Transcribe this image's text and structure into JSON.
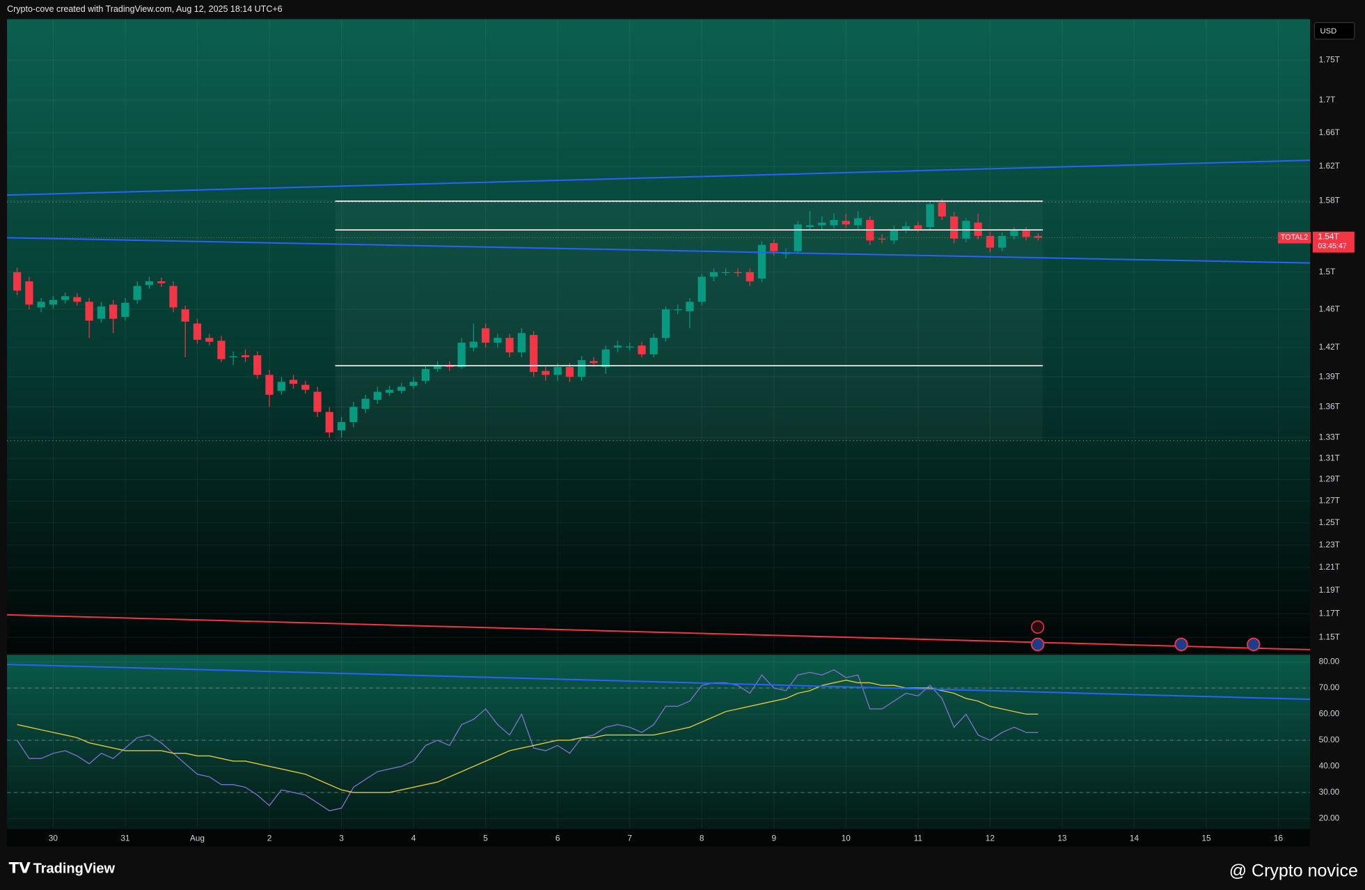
{
  "header": "Crypto-cove created with TradingView.com, Aug 12, 2025 18:14 UTC+6",
  "footer": {
    "brand": "TradingView",
    "watermark": "@ Crypto novice"
  },
  "chart_data": [
    {
      "type": "candlestick",
      "symbol": "TOTAL2",
      "currency": "USD",
      "last_price": {
        "value": 1.538,
        "label": "1.54T"
      },
      "countdown": "03:45:47",
      "up_color": "#089981",
      "down_color": "#f23645",
      "log_scale": true,
      "grid": true,
      "xlim": [
        -0.64,
        17.44
      ],
      "ylim": [
        1.137,
        1.803
      ],
      "yticks": [
        {
          "value": 1.75,
          "label": "1.75T"
        },
        {
          "value": 1.7,
          "label": "1.7T"
        },
        {
          "value": 1.66,
          "label": "1.66T"
        },
        {
          "value": 1.62,
          "label": "1.62T"
        },
        {
          "value": 1.58,
          "label": "1.58T"
        },
        {
          "value": 1.5,
          "label": "1.5T"
        },
        {
          "value": 1.46,
          "label": "1.46T"
        },
        {
          "value": 1.42,
          "label": "1.42T"
        },
        {
          "value": 1.39,
          "label": "1.39T"
        },
        {
          "value": 1.36,
          "label": "1.36T"
        },
        {
          "value": 1.33,
          "label": "1.33T"
        },
        {
          "value": 1.31,
          "label": "1.31T"
        },
        {
          "value": 1.29,
          "label": "1.29T"
        },
        {
          "value": 1.27,
          "label": "1.27T"
        },
        {
          "value": 1.25,
          "label": "1.25T"
        },
        {
          "value": 1.23,
          "label": "1.23T"
        },
        {
          "value": 1.21,
          "label": "1.21T"
        },
        {
          "value": 1.19,
          "label": "1.19T"
        },
        {
          "value": 1.17,
          "label": "1.17T"
        },
        {
          "value": 1.15,
          "label": "1.15T"
        }
      ],
      "x": [
        -0.5,
        -0.333,
        -0.167,
        0,
        0.167,
        0.333,
        0.5,
        0.667,
        0.833,
        1,
        1.167,
        1.333,
        1.5,
        1.667,
        1.833,
        2,
        2.167,
        2.333,
        2.5,
        2.667,
        2.833,
        3,
        3.167,
        3.333,
        3.5,
        3.667,
        3.833,
        4,
        4.167,
        4.333,
        4.5,
        4.667,
        4.833,
        5,
        5.167,
        5.333,
        5.5,
        5.667,
        5.833,
        6,
        6.167,
        6.333,
        6.5,
        6.667,
        6.833,
        7,
        7.167,
        7.333,
        7.5,
        7.667,
        7.833,
        8,
        8.167,
        8.333,
        8.5,
        8.667,
        8.833,
        9,
        9.167,
        9.333,
        9.5,
        9.667,
        9.833,
        10,
        10.167,
        10.333,
        10.5,
        10.667,
        10.833,
        11,
        11.167,
        11.333,
        11.5,
        11.667,
        11.833,
        12,
        12.167,
        12.333,
        12.5,
        12.667,
        12.833,
        13,
        13.167,
        13.333,
        13.5,
        13.667
      ],
      "open": [
        1.5,
        1.49,
        1.462,
        1.465,
        1.47,
        1.473,
        1.468,
        1.45,
        1.465,
        1.452,
        1.47,
        1.486,
        1.49,
        1.485,
        1.46,
        1.445,
        1.43,
        1.427,
        1.41,
        1.412,
        1.412,
        1.392,
        1.376,
        1.387,
        1.382,
        1.375,
        1.355,
        1.337,
        1.345,
        1.358,
        1.367,
        1.374,
        1.376,
        1.381,
        1.386,
        1.398,
        1.402,
        1.4,
        1.42,
        1.44,
        1.425,
        1.43,
        1.415,
        1.433,
        1.396,
        1.392,
        1.4,
        1.39,
        1.406,
        1.4,
        1.42,
        1.421,
        1.422,
        1.413,
        1.43,
        1.46,
        1.458,
        1.468,
        1.495,
        1.5,
        1.5,
        1.5,
        1.493,
        1.532,
        1.52,
        1.523,
        1.55,
        1.552,
        1.552,
        1.557,
        1.552,
        1.558,
        1.537,
        1.535,
        1.547,
        1.552,
        1.55,
        1.578,
        1.562,
        1.537,
        1.555,
        1.54,
        1.527,
        1.54,
        1.546,
        1.54
      ],
      "high": [
        1.505,
        1.495,
        1.472,
        1.474,
        1.478,
        1.477,
        1.472,
        1.468,
        1.47,
        1.472,
        1.49,
        1.495,
        1.494,
        1.49,
        1.464,
        1.45,
        1.434,
        1.432,
        1.416,
        1.418,
        1.416,
        1.397,
        1.39,
        1.392,
        1.386,
        1.38,
        1.36,
        1.35,
        1.365,
        1.372,
        1.38,
        1.381,
        1.384,
        1.39,
        1.402,
        1.406,
        1.406,
        1.43,
        1.445,
        1.445,
        1.434,
        1.434,
        1.44,
        1.437,
        1.4,
        1.404,
        1.404,
        1.411,
        1.41,
        1.422,
        1.427,
        1.425,
        1.426,
        1.434,
        1.463,
        1.465,
        1.472,
        1.498,
        1.504,
        1.504,
        1.504,
        1.504,
        1.534,
        1.536,
        1.526,
        1.557,
        1.568,
        1.562,
        1.566,
        1.565,
        1.568,
        1.562,
        1.542,
        1.552,
        1.556,
        1.556,
        1.58,
        1.582,
        1.567,
        1.56,
        1.565,
        1.545,
        1.544,
        1.55,
        1.55,
        1.543
      ],
      "low": [
        1.475,
        1.46,
        1.457,
        1.461,
        1.466,
        1.464,
        1.43,
        1.446,
        1.435,
        1.448,
        1.466,
        1.482,
        1.484,
        1.457,
        1.41,
        1.424,
        1.422,
        1.405,
        1.402,
        1.405,
        1.388,
        1.36,
        1.372,
        1.378,
        1.373,
        1.35,
        1.33,
        1.33,
        1.34,
        1.354,
        1.363,
        1.371,
        1.373,
        1.378,
        1.383,
        1.395,
        1.396,
        1.398,
        1.416,
        1.42,
        1.42,
        1.41,
        1.41,
        1.39,
        1.386,
        1.386,
        1.385,
        1.386,
        1.4,
        1.393,
        1.415,
        1.417,
        1.41,
        1.41,
        1.426,
        1.455,
        1.44,
        1.464,
        1.49,
        1.496,
        1.495,
        1.485,
        1.489,
        1.518,
        1.515,
        1.52,
        1.546,
        1.547,
        1.548,
        1.549,
        1.548,
        1.53,
        1.532,
        1.531,
        1.543,
        1.544,
        1.546,
        1.558,
        1.532,
        1.533,
        1.536,
        1.522,
        1.523,
        1.536,
        1.535,
        1.535
      ],
      "close": [
        1.48,
        1.465,
        1.468,
        1.47,
        1.474,
        1.468,
        1.448,
        1.463,
        1.45,
        1.467,
        1.485,
        1.49,
        1.488,
        1.462,
        1.447,
        1.428,
        1.426,
        1.408,
        1.411,
        1.41,
        1.392,
        1.372,
        1.385,
        1.383,
        1.377,
        1.355,
        1.335,
        1.345,
        1.36,
        1.368,
        1.375,
        1.377,
        1.38,
        1.385,
        1.398,
        1.402,
        1.4,
        1.425,
        1.426,
        1.425,
        1.43,
        1.415,
        1.435,
        1.395,
        1.392,
        1.4,
        1.39,
        1.407,
        1.404,
        1.418,
        1.422,
        1.421,
        1.413,
        1.43,
        1.46,
        1.46,
        1.468,
        1.495,
        1.5,
        1.5,
        1.499,
        1.49,
        1.53,
        1.523,
        1.522,
        1.553,
        1.552,
        1.555,
        1.558,
        1.553,
        1.56,
        1.535,
        1.536,
        1.547,
        1.551,
        1.548,
        1.576,
        1.562,
        1.537,
        1.557,
        1.54,
        1.527,
        1.54,
        1.546,
        1.539,
        1.538
      ]
    },
    {
      "type": "line",
      "grid": true,
      "xlim": [
        -0.64,
        17.44
      ],
      "ylim": [
        16,
        82.7
      ],
      "levels": [
        70,
        50,
        30
      ],
      "xticks": [
        {
          "value": 0,
          "label": "30"
        },
        {
          "value": 1,
          "label": "31"
        },
        {
          "value": 2,
          "label": "Aug"
        },
        {
          "value": 3,
          "label": "2"
        },
        {
          "value": 4,
          "label": "3"
        },
        {
          "value": 5,
          "label": "4"
        },
        {
          "value": 6,
          "label": "5"
        },
        {
          "value": 7,
          "label": "6"
        },
        {
          "value": 8,
          "label": "7"
        },
        {
          "value": 9,
          "label": "8"
        },
        {
          "value": 10,
          "label": "9"
        },
        {
          "value": 11,
          "label": "10"
        },
        {
          "value": 12,
          "label": "11"
        },
        {
          "value": 13,
          "label": "12"
        },
        {
          "value": 14,
          "label": "13"
        },
        {
          "value": 15,
          "label": "14"
        },
        {
          "value": 16,
          "label": "15"
        },
        {
          "value": 17,
          "label": "16"
        }
      ],
      "yticks": [
        {
          "value": 80,
          "label": "80.00"
        },
        {
          "value": 70,
          "label": "70.00"
        },
        {
          "value": 60,
          "label": "60.00"
        },
        {
          "value": 50,
          "label": "50.00"
        },
        {
          "value": 40,
          "label": "40.00"
        },
        {
          "value": 30,
          "label": "30.00"
        },
        {
          "value": 20,
          "label": "20.00"
        }
      ],
      "x": [
        -0.5,
        -0.333,
        -0.167,
        0,
        0.167,
        0.333,
        0.5,
        0.667,
        0.833,
        1,
        1.167,
        1.333,
        1.5,
        1.667,
        1.833,
        2,
        2.167,
        2.333,
        2.5,
        2.667,
        2.833,
        3,
        3.167,
        3.333,
        3.5,
        3.667,
        3.833,
        4,
        4.167,
        4.333,
        4.5,
        4.667,
        4.833,
        5,
        5.167,
        5.333,
        5.5,
        5.667,
        5.833,
        6,
        6.167,
        6.333,
        6.5,
        6.667,
        6.833,
        7,
        7.167,
        7.333,
        7.5,
        7.667,
        7.833,
        8,
        8.167,
        8.333,
        8.5,
        8.667,
        8.833,
        9,
        9.167,
        9.333,
        9.5,
        9.667,
        9.833,
        10,
        10.167,
        10.333,
        10.5,
        10.667,
        10.833,
        11,
        11.167,
        11.333,
        11.5,
        11.667,
        11.833,
        12,
        12.167,
        12.333,
        12.5,
        12.667,
        12.833,
        13,
        13.167,
        13.333,
        13.5,
        13.667
      ],
      "series": [
        {
          "color": "#7e6fc9",
          "values": [
            50,
            43,
            43,
            45,
            46,
            44,
            41,
            45,
            43,
            47,
            51,
            52,
            49,
            45,
            41,
            37,
            36,
            33,
            33,
            32,
            29,
            25,
            31,
            30,
            29,
            26,
            23,
            24,
            32,
            35,
            38,
            39,
            40,
            42,
            48,
            50,
            48,
            56,
            58,
            62,
            56,
            52,
            60,
            47,
            46,
            48,
            45,
            51,
            52,
            55,
            56,
            55,
            53,
            56,
            63,
            63,
            65,
            71,
            72,
            72,
            71,
            68,
            75,
            70,
            69,
            75,
            76,
            75,
            77,
            74,
            75,
            62,
            62,
            65,
            68,
            67,
            71,
            66,
            55,
            60,
            52,
            50,
            53,
            55,
            53,
            53
          ]
        },
        {
          "color": "#e3c93c",
          "values": [
            56,
            55,
            54,
            53,
            52,
            51,
            49,
            48,
            47,
            46,
            46,
            46,
            46,
            45,
            45,
            44,
            44,
            43,
            42,
            42,
            41,
            40,
            39,
            38,
            37,
            35,
            33,
            31,
            30,
            30,
            30,
            30,
            31,
            32,
            33,
            34,
            36,
            38,
            40,
            42,
            44,
            46,
            47,
            48,
            49,
            50,
            50,
            51,
            51,
            52,
            52,
            52,
            52,
            52,
            53,
            54,
            55,
            57,
            59,
            61,
            62,
            63,
            64,
            65,
            66,
            68,
            69,
            71,
            72,
            73,
            72,
            72,
            71,
            71,
            70,
            70,
            70,
            69,
            68,
            66,
            65,
            63,
            62,
            61,
            60,
            60
          ]
        }
      ]
    }
  ]
}
